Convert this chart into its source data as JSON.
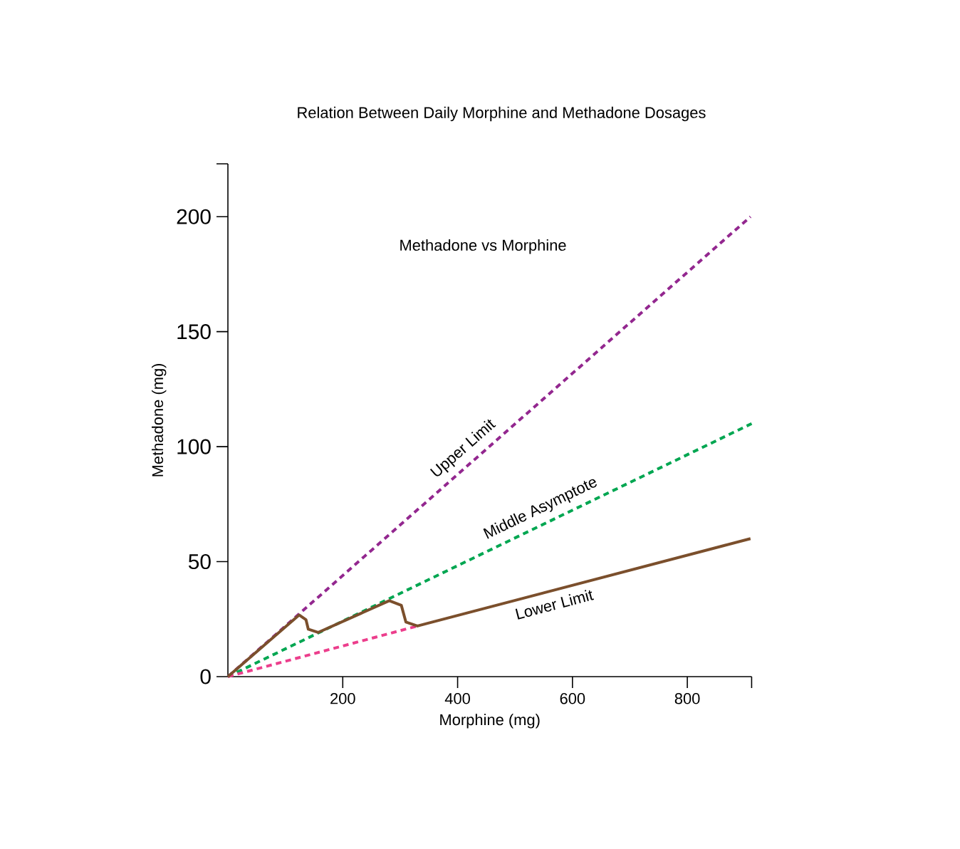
{
  "chart_data": {
    "type": "line",
    "title": "Relation Between Daily Morphine and Methadone Dosages",
    "xlabel": "Morphine (mg)",
    "ylabel": "Methadone (mg)",
    "annotations": [
      "Methadone vs Morphine"
    ],
    "xlim": [
      0,
      912
    ],
    "ylim": [
      0,
      223
    ],
    "xticks": [
      200,
      400,
      600,
      800,
      {
        "value": 912,
        "label": null
      }
    ],
    "yticks": [
      0,
      50,
      100,
      150,
      200,
      {
        "value": 223,
        "label": null
      }
    ],
    "series": [
      {
        "name": "Upper Limit",
        "color": "#93278f",
        "line_style": "dashed",
        "x": [
          0,
          910
        ],
        "values": [
          0,
          200
        ]
      },
      {
        "name": "Middle Asymptote",
        "color": "#00a651",
        "line_style": "dashed",
        "x": [
          0,
          912
        ],
        "values": [
          0,
          110
        ]
      },
      {
        "color": "#ec3e8c",
        "line_style": "dashed",
        "x": [
          0,
          330
        ],
        "values": [
          0,
          22
        ]
      },
      {
        "name": "Lower Limit",
        "color": "#7b4f2c",
        "line_style": "solid",
        "x": [
          0,
          124,
          136,
          140,
          157,
          281,
          302,
          310,
          330,
          910
        ],
        "values": [
          0,
          26.8,
          24.7,
          20.6,
          19.2,
          33,
          31,
          23.7,
          22,
          60
        ]
      }
    ]
  }
}
